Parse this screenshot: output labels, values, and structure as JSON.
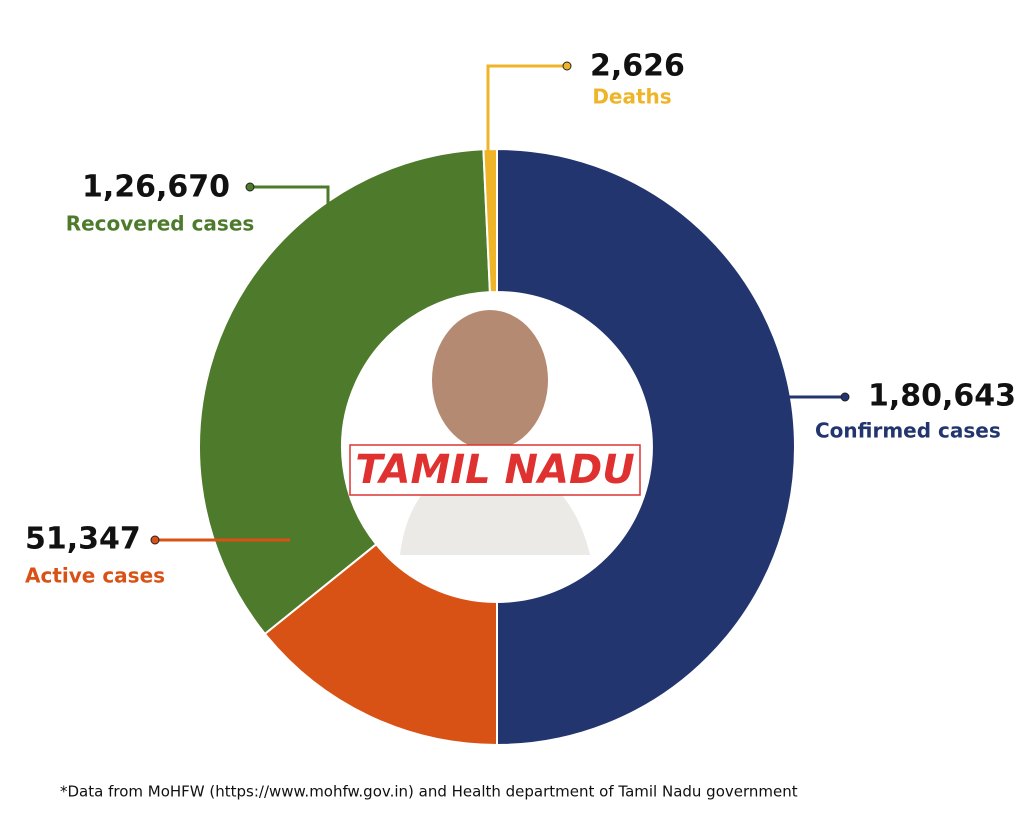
{
  "chart_data": {
    "type": "pie",
    "donut": true,
    "categories": [
      "Confirmed cases",
      "Active cases",
      "Recovered cases",
      "Deaths"
    ],
    "values": [
      180643,
      51347,
      126670,
      2626
    ],
    "value_labels": [
      "1,80,643",
      "51,347",
      "1,26,670",
      "2,626"
    ],
    "colors": [
      "#22356e",
      "#d95215",
      "#4e7a2b",
      "#f0b429"
    ],
    "center_label": "TAMIL NADU",
    "footnote": "*Data from MoHFW (https://www.mohfw.gov.in) and Health department of Tamil Nadu government"
  }
}
